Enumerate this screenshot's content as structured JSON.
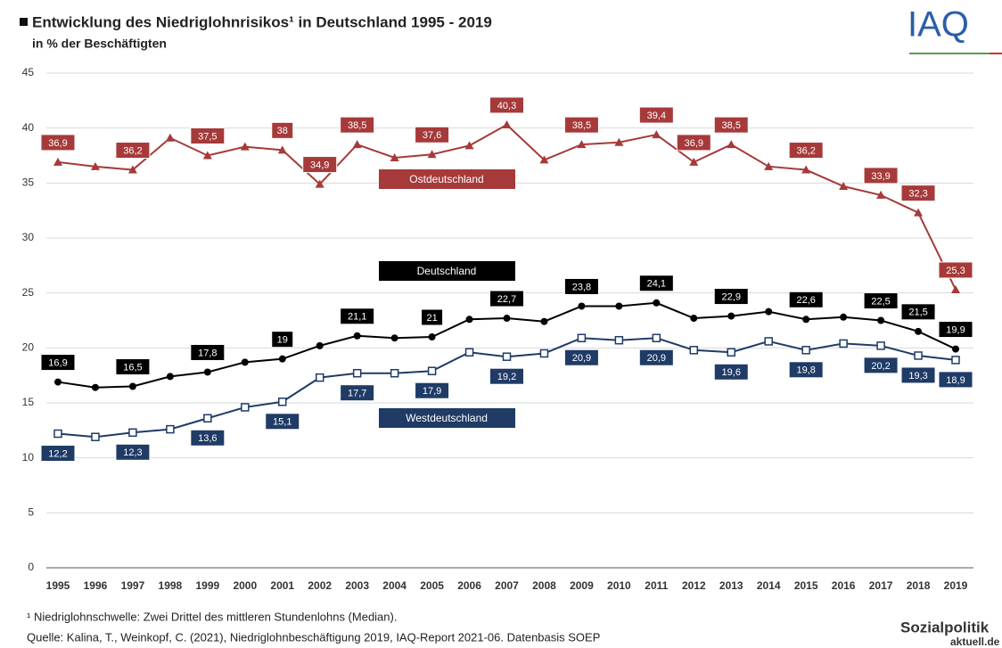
{
  "chart_data": {
    "type": "line",
    "title": "Entwicklung des Niedriglohnrisikos¹ in Deutschland 1995 - 2019",
    "subtitle": "in % der Beschäftigten",
    "categories": [
      "1995",
      "1996",
      "1997",
      "1998",
      "1999",
      "2000",
      "2001",
      "2002",
      "2003",
      "2004",
      "2005",
      "2006",
      "2007",
      "2008",
      "2009",
      "2010",
      "2011",
      "2012",
      "2013",
      "2014",
      "2015",
      "2016",
      "2017",
      "2018",
      "2019"
    ],
    "series": [
      {
        "name": "Ostdeutschland",
        "color": "#a63a3a",
        "marker": "triangle",
        "values": [
          36.9,
          36.5,
          36.2,
          39.1,
          37.5,
          38.3,
          38,
          34.9,
          38.5,
          37.3,
          37.6,
          38.4,
          40.3,
          37.1,
          38.5,
          38.7,
          39.4,
          36.9,
          38.5,
          36.5,
          36.2,
          34.7,
          33.9,
          32.3,
          25.3
        ],
        "value_labels": [
          "36,9",
          null,
          "36,2",
          null,
          "37,5",
          null,
          "38",
          "34,9",
          "38,5",
          null,
          "37,6",
          null,
          "40,3",
          null,
          "38,5",
          null,
          "39,4",
          "36,9",
          "38,5",
          null,
          "36,2",
          null,
          "33,9",
          "32,3",
          "25,3"
        ]
      },
      {
        "name": "Deutschland",
        "color": "#000000",
        "marker": "dot",
        "values": [
          16.9,
          16.4,
          16.5,
          17.4,
          17.8,
          18.7,
          19,
          20.2,
          21.1,
          20.9,
          21,
          22.6,
          22.7,
          22.4,
          23.8,
          23.8,
          24.1,
          22.7,
          22.9,
          23.3,
          22.6,
          22.8,
          22.5,
          21.5,
          19.9
        ],
        "value_labels": [
          "16,9",
          null,
          "16,5",
          null,
          "17,8",
          null,
          "19",
          null,
          "21,1",
          null,
          "21",
          null,
          "22,7",
          null,
          "23,8",
          null,
          "24,1",
          null,
          "22,9",
          null,
          "22,6",
          null,
          "22,5",
          "21,5",
          "19,9"
        ]
      },
      {
        "name": "Westdeutschland",
        "color": "#1f3b66",
        "marker": "square",
        "values": [
          12.2,
          11.9,
          12.3,
          12.6,
          13.6,
          14.6,
          15.1,
          17.3,
          17.7,
          17.7,
          17.9,
          19.6,
          19.2,
          19.5,
          20.9,
          20.7,
          20.9,
          19.8,
          19.6,
          20.6,
          19.8,
          20.4,
          20.2,
          19.3,
          18.9
        ],
        "value_labels": [
          "12,2",
          null,
          "12,3",
          null,
          "13,6",
          null,
          "15,1",
          null,
          "17,7",
          null,
          "17,9",
          null,
          "19,2",
          null,
          "20,9",
          null,
          "20,9",
          null,
          "19,6",
          null,
          "19,8",
          null,
          "20,2",
          "19,3",
          "18,9"
        ]
      }
    ],
    "ylim": [
      0,
      45
    ],
    "yticks": [
      0,
      5,
      10,
      15,
      20,
      25,
      30,
      35,
      40,
      45
    ],
    "grid": true,
    "footnote": "¹ Niedriglohnschwelle: Zwei Drittel des mittleren Stundenlohns (Median).",
    "source": "Quelle: Kalina, T., Weinkopf, C. (2021), Niedriglohnbeschäftigung 2019, IAQ-Report 2021-06. Datenbasis SOEP"
  },
  "branding": {
    "iaq": "IAQ",
    "sozialpolitik": "Sozialpolitik",
    "sozialpolitik_domain": "aktuell.de"
  }
}
